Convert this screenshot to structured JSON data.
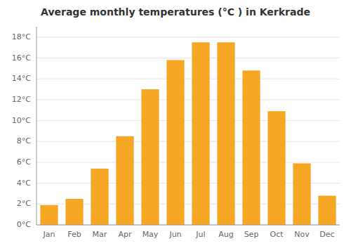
{
  "chart_data": {
    "type": "bar",
    "title": "Average monthly temperatures (°C ) in Kerkrade",
    "categories": [
      "Jan",
      "Feb",
      "Mar",
      "Apr",
      "May",
      "Jun",
      "Jul",
      "Aug",
      "Sep",
      "Oct",
      "Nov",
      "Dec"
    ],
    "values": [
      1.9,
      2.5,
      5.4,
      8.5,
      13.0,
      15.8,
      17.5,
      17.5,
      14.8,
      10.9,
      5.9,
      2.8
    ],
    "color": "#F5A623",
    "ylim": [
      0,
      19
    ],
    "yticks": [
      {
        "value": 0,
        "label": "0°C"
      },
      {
        "value": 2,
        "label": "2°C"
      },
      {
        "value": 4,
        "label": "4°C"
      },
      {
        "value": 6,
        "label": "6°C"
      },
      {
        "value": 8,
        "label": "8°C"
      },
      {
        "value": 10,
        "label": "10°C"
      },
      {
        "value": 12,
        "label": "12°C"
      },
      {
        "value": 14,
        "label": "14°C"
      },
      {
        "value": 16,
        "label": "16°C"
      },
      {
        "value": 18,
        "label": "18°C"
      }
    ],
    "grid": true
  }
}
